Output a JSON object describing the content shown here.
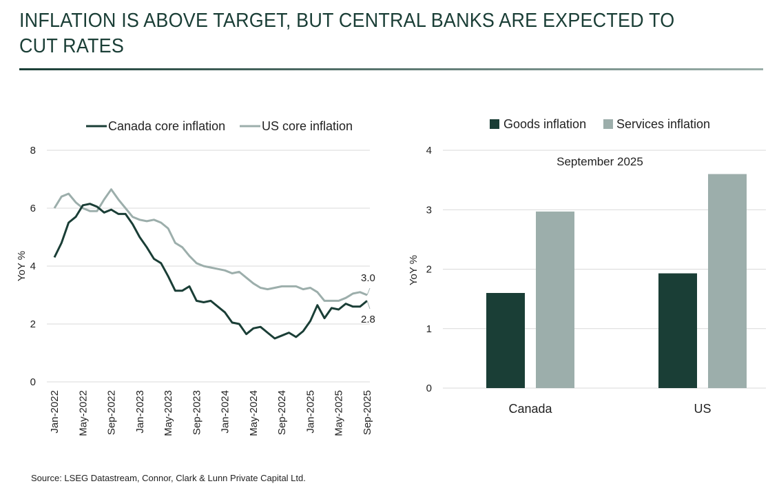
{
  "title": "INFLATION IS ABOVE TARGET, BUT CENTRAL BANKS ARE EXPECTED TO CUT RATES",
  "source": "Source:  LSEG Datastream, Connor, Clark & Lunn Private Capital Ltd.",
  "colors": {
    "dark": "#1a3e36",
    "light": "#9caeab",
    "grid": "#d9d9d9"
  },
  "chart_data": [
    {
      "type": "line",
      "title": "",
      "xlabel": "",
      "ylabel": "YoY %",
      "ylim": [
        0,
        8
      ],
      "yticks": [
        "0",
        "2",
        "4",
        "6",
        "8"
      ],
      "grid": true,
      "legend": "top",
      "x": [
        "Jan-2022",
        "Feb-2022",
        "Mar-2022",
        "Apr-2022",
        "May-2022",
        "Jun-2022",
        "Jul-2022",
        "Aug-2022",
        "Sep-2022",
        "Oct-2022",
        "Nov-2022",
        "Dec-2022",
        "Jan-2023",
        "Feb-2023",
        "Mar-2023",
        "Apr-2023",
        "May-2023",
        "Jun-2023",
        "Jul-2023",
        "Aug-2023",
        "Sep-2023",
        "Oct-2023",
        "Nov-2023",
        "Dec-2023",
        "Jan-2024",
        "Feb-2024",
        "Mar-2024",
        "Apr-2024",
        "May-2024",
        "Jun-2024",
        "Jul-2024",
        "Aug-2024",
        "Sep-2024",
        "Oct-2024",
        "Nov-2024",
        "Dec-2024",
        "Jan-2025",
        "Feb-2025",
        "Mar-2025",
        "Apr-2025",
        "May-2025",
        "Jun-2025",
        "Jul-2025",
        "Aug-2025",
        "Sep-2025"
      ],
      "xticks": [
        "Jan-2022",
        "May-2022",
        "Sep-2022",
        "Jan-2023",
        "May-2023",
        "Sep-2023",
        "Jan-2024",
        "May-2024",
        "Sep-2024",
        "Jan-2025",
        "May-2025",
        "Sep-2025"
      ],
      "series": [
        {
          "name": "Canada core inflation",
          "color": "#1a3e36",
          "values": [
            4.3,
            4.8,
            5.5,
            5.7,
            6.1,
            6.15,
            6.05,
            5.85,
            5.95,
            5.8,
            5.8,
            5.45,
            5.0,
            4.65,
            4.25,
            4.1,
            3.65,
            3.15,
            3.15,
            3.3,
            2.8,
            2.75,
            2.8,
            2.6,
            2.4,
            2.05,
            2.0,
            1.65,
            1.85,
            1.9,
            1.7,
            1.5,
            1.6,
            1.7,
            1.55,
            1.75,
            2.1,
            2.65,
            2.2,
            2.55,
            2.5,
            2.7,
            2.6,
            2.6,
            2.8
          ],
          "end_label": "2.8"
        },
        {
          "name": "US core inflation",
          "color": "#9caeab",
          "values": [
            6.0,
            6.4,
            6.5,
            6.2,
            6.0,
            5.9,
            5.9,
            6.3,
            6.65,
            6.3,
            6.0,
            5.7,
            5.6,
            5.55,
            5.6,
            5.5,
            5.3,
            4.8,
            4.65,
            4.35,
            4.1,
            4.0,
            3.95,
            3.9,
            3.85,
            3.75,
            3.8,
            3.6,
            3.4,
            3.25,
            3.2,
            3.25,
            3.3,
            3.3,
            3.3,
            3.2,
            3.25,
            3.1,
            2.8,
            2.8,
            2.8,
            2.9,
            3.05,
            3.1,
            3.0
          ],
          "end_label": "3.0"
        }
      ]
    },
    {
      "type": "bar",
      "title": "September 2025",
      "xlabel": "",
      "ylabel": "YoY %",
      "ylim": [
        0,
        4
      ],
      "yticks": [
        "0",
        "1",
        "2",
        "3",
        "4"
      ],
      "grid": true,
      "legend": "top",
      "categories": [
        "Canada",
        "US"
      ],
      "series": [
        {
          "name": "Goods inflation",
          "color": "#1a3e36",
          "values": [
            1.6,
            1.93
          ]
        },
        {
          "name": "Services inflation",
          "color": "#9caeab",
          "values": [
            2.97,
            3.6
          ]
        }
      ]
    }
  ]
}
